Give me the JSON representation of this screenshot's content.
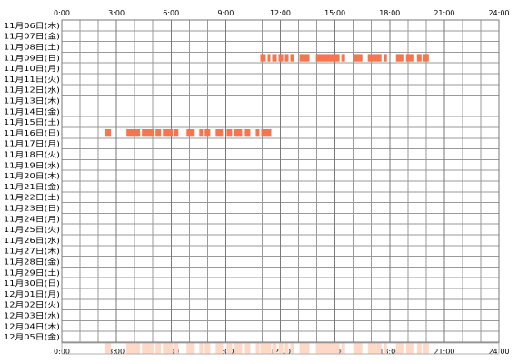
{
  "chart_data": {
    "type": "heatmap",
    "x_axis": {
      "ticks": [
        "0:00",
        "3:00",
        "6:00",
        "9:00",
        "12:00",
        "15:00",
        "18:00",
        "21:00",
        "24:00"
      ],
      "range_hours": [
        0,
        24
      ],
      "labels_top": true,
      "labels_bottom": true
    },
    "rows": [
      "11月06日(木)",
      "11月07日(金)",
      "11月08日(土)",
      "11月09日(日)",
      "11月10日(月)",
      "11月11日(火)",
      "11月12日(水)",
      "11月13日(木)",
      "11月14日(金)",
      "11月15日(土)",
      "11月16日(日)",
      "11月17日(月)",
      "11月18日(火)",
      "11月19日(水)",
      "11月20日(木)",
      "11月21日(金)",
      "11月22日(土)",
      "11月23日(日)",
      "11月24日(月)",
      "11月25日(火)",
      "11月26日(水)",
      "11月27日(木)",
      "11月28日(金)",
      "11月29日(土)",
      "11月30日(日)",
      "12月01日(月)",
      "12月02日(火)",
      "12月03日(水)",
      "12月04日(木)",
      "12月05日(金)"
    ],
    "activity": [
      {
        "date": "11月09日(日)",
        "intervals_hours": [
          [
            10.9,
            11.2
          ],
          [
            11.3,
            11.45
          ],
          [
            11.55,
            11.8
          ],
          [
            11.9,
            12.15
          ],
          [
            12.25,
            12.45
          ],
          [
            12.55,
            12.75
          ],
          [
            13.05,
            13.6
          ],
          [
            13.95,
            15.25
          ],
          [
            15.35,
            15.55
          ],
          [
            16.0,
            16.5
          ],
          [
            16.8,
            17.55
          ],
          [
            17.7,
            17.85
          ],
          [
            18.35,
            18.8
          ],
          [
            18.9,
            19.35
          ],
          [
            19.5,
            19.75
          ],
          [
            19.85,
            20.15
          ]
        ]
      },
      {
        "date": "11月16日(日)",
        "intervals_hours": [
          [
            2.35,
            2.7
          ],
          [
            3.55,
            4.3
          ],
          [
            4.4,
            5.05
          ],
          [
            5.15,
            5.45
          ],
          [
            5.55,
            6.1
          ],
          [
            6.15,
            6.4
          ],
          [
            6.85,
            7.3
          ],
          [
            7.55,
            7.75
          ],
          [
            7.85,
            8.15
          ],
          [
            8.45,
            8.85
          ],
          [
            9.05,
            9.35
          ],
          [
            9.45,
            9.9
          ],
          [
            10.05,
            10.35
          ],
          [
            10.65,
            10.85
          ],
          [
            10.95,
            11.5
          ]
        ]
      }
    ],
    "colors": {
      "bar": "#f5754f",
      "overview_bar": "#ffd9c7",
      "grid": "#9a9a9a",
      "frame": "#7a7a7a",
      "text": "#000000"
    },
    "grid": true,
    "overview_strip": true
  }
}
